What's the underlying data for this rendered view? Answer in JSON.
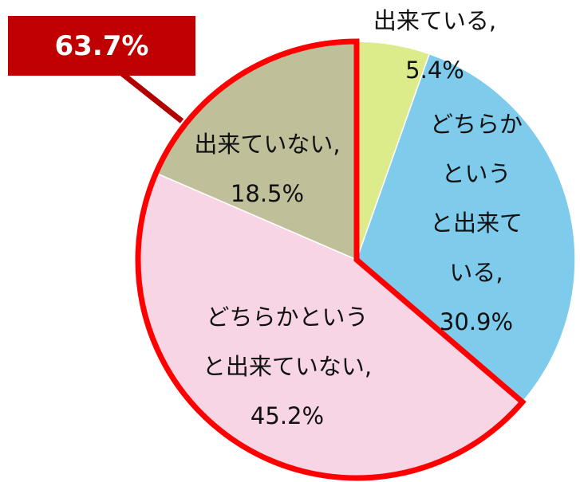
{
  "chart_data": {
    "type": "pie",
    "categories": [
      "出来ている,",
      "どちらかという\nと出来ている,",
      "どちらかという\nと出来ていない,",
      "出来ていない,"
    ],
    "values": [
      5.4,
      30.9,
      45.2,
      18.5
    ],
    "value_labels": [
      "5.4%",
      "30.9%",
      "45.2%",
      "18.5%"
    ],
    "colors": [
      "#dcec8a",
      "#7ecbec",
      "#f8d5e5",
      "#bfbf99"
    ],
    "annotation": "63.7%"
  }
}
